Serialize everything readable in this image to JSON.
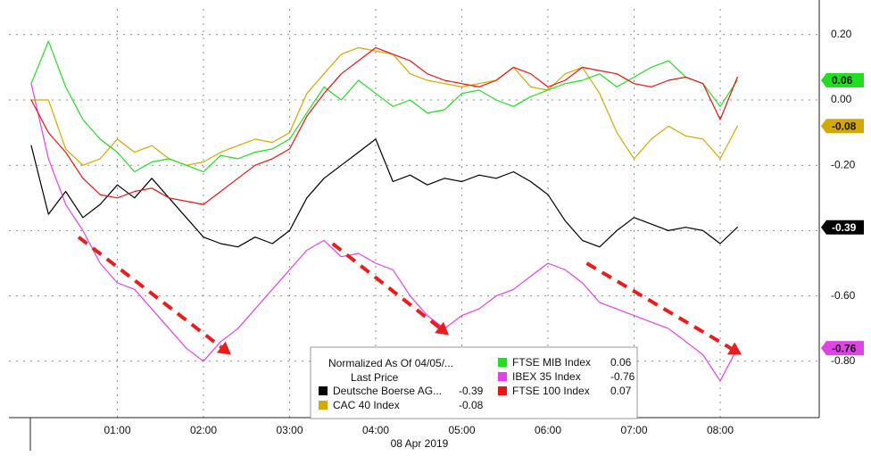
{
  "chart_data": {
    "type": "line",
    "title": "",
    "xlabel": "08 Apr 2019",
    "ylabel": "",
    "x_ticks": [
      "01:00",
      "02:00",
      "03:00",
      "04:00",
      "05:00",
      "06:00",
      "07:00",
      "08:00"
    ],
    "x_range": [
      0,
      8.25
    ],
    "ylim": [
      -0.97,
      0.28
    ],
    "y_ticks": [
      0.2,
      0.0,
      -0.2,
      -0.4,
      -0.6,
      -0.8
    ],
    "y_tick_labels": [
      "0.20",
      "0.00",
      "-0.20",
      "-0.40",
      "-0.60",
      "-0.80"
    ],
    "grid": true,
    "legend": {
      "placement": "bottom-center",
      "header_line1": "Normalized As Of 04/05/...",
      "header_line2": "Last Price",
      "entries": [
        {
          "series_index": 0,
          "label": "Deutsche Boerse AG...",
          "value": "-0.39"
        },
        {
          "series_index": 1,
          "label": "CAC 40 Index",
          "value": "-0.08"
        },
        {
          "series_index": 2,
          "label": "FTSE MIB Index",
          "value": "0.06"
        },
        {
          "series_index": 3,
          "label": "IBEX 35 Index",
          "value": "-0.76"
        },
        {
          "series_index": 4,
          "label": "FTSE 100 Index",
          "value": "0.07"
        }
      ]
    },
    "series": [
      {
        "name": "Deutsche Boerse AG...",
        "color": "#000000",
        "last_value_label": "-0.39",
        "x": [
          0.0,
          0.2,
          0.4,
          0.6,
          0.8,
          1.0,
          1.2,
          1.4,
          1.6,
          1.8,
          2.0,
          2.2,
          2.4,
          2.6,
          2.8,
          3.0,
          3.2,
          3.4,
          3.6,
          3.8,
          4.0,
          4.2,
          4.4,
          4.6,
          4.8,
          5.0,
          5.2,
          5.4,
          5.6,
          5.8,
          6.0,
          6.2,
          6.4,
          6.6,
          6.8,
          7.0,
          7.2,
          7.4,
          7.6,
          7.8,
          8.0,
          8.2
        ],
        "y": [
          -0.14,
          -0.35,
          -0.28,
          -0.36,
          -0.32,
          -0.26,
          -0.3,
          -0.24,
          -0.3,
          -0.36,
          -0.42,
          -0.44,
          -0.45,
          -0.42,
          -0.44,
          -0.4,
          -0.3,
          -0.24,
          -0.2,
          -0.16,
          -0.12,
          -0.25,
          -0.23,
          -0.26,
          -0.24,
          -0.25,
          -0.23,
          -0.24,
          -0.22,
          -0.25,
          -0.29,
          -0.37,
          -0.43,
          -0.45,
          -0.4,
          -0.36,
          -0.38,
          -0.4,
          -0.39,
          -0.4,
          -0.44,
          -0.39
        ]
      },
      {
        "name": "CAC 40 Index",
        "color": "#d4a800",
        "last_value_label": "-0.08",
        "x": [
          0.0,
          0.2,
          0.4,
          0.6,
          0.8,
          1.0,
          1.2,
          1.4,
          1.6,
          1.8,
          2.0,
          2.2,
          2.4,
          2.6,
          2.8,
          3.0,
          3.2,
          3.4,
          3.6,
          3.8,
          4.0,
          4.2,
          4.4,
          4.6,
          4.8,
          5.0,
          5.2,
          5.4,
          5.6,
          5.8,
          6.0,
          6.2,
          6.4,
          6.6,
          6.8,
          7.0,
          7.2,
          7.4,
          7.6,
          7.8,
          8.0,
          8.2
        ],
        "y": [
          0.0,
          0.0,
          -0.15,
          -0.2,
          -0.18,
          -0.12,
          -0.16,
          -0.14,
          -0.18,
          -0.2,
          -0.19,
          -0.16,
          -0.14,
          -0.12,
          -0.13,
          -0.1,
          0.02,
          0.08,
          0.14,
          0.16,
          0.15,
          0.14,
          0.08,
          0.06,
          0.05,
          0.04,
          0.05,
          0.06,
          0.1,
          0.04,
          0.03,
          0.08,
          0.1,
          0.02,
          -0.1,
          -0.18,
          -0.12,
          -0.08,
          -0.11,
          -0.12,
          -0.18,
          -0.08
        ]
      },
      {
        "name": "FTSE MIB Index",
        "color": "#22dd22",
        "last_value_label": "0.06",
        "x": [
          0.0,
          0.2,
          0.4,
          0.6,
          0.8,
          1.0,
          1.2,
          1.4,
          1.6,
          1.8,
          2.0,
          2.2,
          2.4,
          2.6,
          2.8,
          3.0,
          3.2,
          3.4,
          3.6,
          3.8,
          4.0,
          4.2,
          4.4,
          4.6,
          4.8,
          5.0,
          5.2,
          5.4,
          5.6,
          5.8,
          6.0,
          6.2,
          6.4,
          6.6,
          6.8,
          7.0,
          7.2,
          7.4,
          7.6,
          7.8,
          8.0,
          8.2
        ],
        "y": [
          0.05,
          0.18,
          0.04,
          -0.06,
          -0.12,
          -0.16,
          -0.22,
          -0.19,
          -0.18,
          -0.2,
          -0.22,
          -0.17,
          -0.18,
          -0.16,
          -0.15,
          -0.12,
          -0.04,
          0.04,
          0.0,
          0.06,
          0.02,
          -0.02,
          0.0,
          -0.04,
          -0.03,
          0.02,
          0.03,
          0.0,
          -0.02,
          0.01,
          0.03,
          0.05,
          0.06,
          0.08,
          0.04,
          0.07,
          0.1,
          0.12,
          0.07,
          0.05,
          -0.02,
          0.06
        ]
      },
      {
        "name": "IBEX 35 Index",
        "color": "#e142e8",
        "last_value_label": "-0.76",
        "x": [
          0.0,
          0.2,
          0.4,
          0.6,
          0.8,
          1.0,
          1.2,
          1.4,
          1.6,
          1.8,
          2.0,
          2.2,
          2.4,
          2.6,
          2.8,
          3.0,
          3.2,
          3.4,
          3.6,
          3.8,
          4.0,
          4.2,
          4.4,
          4.6,
          4.8,
          5.0,
          5.2,
          5.4,
          5.6,
          5.8,
          6.0,
          6.2,
          6.4,
          6.6,
          6.8,
          7.0,
          7.2,
          7.4,
          7.6,
          7.8,
          8.0,
          8.2
        ],
        "y": [
          0.05,
          -0.18,
          -0.32,
          -0.4,
          -0.5,
          -0.56,
          -0.58,
          -0.64,
          -0.7,
          -0.76,
          -0.8,
          -0.74,
          -0.7,
          -0.64,
          -0.58,
          -0.52,
          -0.46,
          -0.43,
          -0.48,
          -0.47,
          -0.5,
          -0.52,
          -0.6,
          -0.66,
          -0.7,
          -0.66,
          -0.64,
          -0.6,
          -0.58,
          -0.54,
          -0.5,
          -0.52,
          -0.56,
          -0.62,
          -0.64,
          -0.66,
          -0.68,
          -0.7,
          -0.74,
          -0.78,
          -0.86,
          -0.76
        ]
      },
      {
        "name": "FTSE 100 Index",
        "color": "#e81414",
        "last_value_label": "0.07",
        "x": [
          0.0,
          0.2,
          0.4,
          0.6,
          0.8,
          1.0,
          1.2,
          1.4,
          1.6,
          1.8,
          2.0,
          2.2,
          2.4,
          2.6,
          2.8,
          3.0,
          3.2,
          3.4,
          3.6,
          3.8,
          4.0,
          4.2,
          4.4,
          4.6,
          4.8,
          5.0,
          5.2,
          5.4,
          5.6,
          5.8,
          6.0,
          6.2,
          6.4,
          6.6,
          6.8,
          7.0,
          7.2,
          7.4,
          7.6,
          7.8,
          8.0,
          8.2
        ],
        "y": [
          0.0,
          -0.1,
          -0.16,
          -0.24,
          -0.29,
          -0.3,
          -0.28,
          -0.27,
          -0.3,
          -0.31,
          -0.32,
          -0.28,
          -0.24,
          -0.2,
          -0.18,
          -0.15,
          -0.05,
          0.02,
          0.08,
          0.12,
          0.16,
          0.14,
          0.12,
          0.08,
          0.06,
          0.05,
          0.04,
          0.06,
          0.1,
          0.08,
          0.04,
          0.06,
          0.1,
          0.09,
          0.08,
          0.05,
          0.04,
          0.06,
          0.07,
          0.05,
          -0.06,
          0.07
        ]
      }
    ],
    "annotations": [
      {
        "type": "dashed-arrow",
        "color": "#ea1c1c",
        "from": [
          0.55,
          -0.42
        ],
        "to": [
          2.32,
          -0.78
        ]
      },
      {
        "type": "dashed-arrow",
        "color": "#ea1c1c",
        "from": [
          3.5,
          -0.44
        ],
        "to": [
          4.85,
          -0.72
        ]
      },
      {
        "type": "dashed-arrow",
        "color": "#ea1c1c",
        "from": [
          6.45,
          -0.5
        ],
        "to": [
          8.25,
          -0.78
        ]
      }
    ]
  }
}
